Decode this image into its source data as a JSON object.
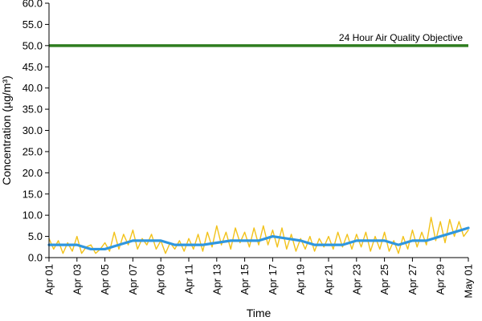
{
  "chart_data": {
    "type": "line",
    "title": "",
    "xlabel": "Time",
    "ylabel": "Concentration (µg/m³)",
    "ylim": [
      0,
      60
    ],
    "yticks": [
      "0.0",
      "5.0",
      "10.0",
      "15.0",
      "20.0",
      "25.0",
      "30.0",
      "35.0",
      "40.0",
      "45.0",
      "50.0",
      "55.0",
      "60.0"
    ],
    "xlim": [
      "2019-04-01",
      "2019-05-01"
    ],
    "xticks": [
      {
        "date": "2019-04-01",
        "label": "Apr 01"
      },
      {
        "date": "2019-04-03",
        "label": "Apr 03"
      },
      {
        "date": "2019-04-05",
        "label": "Apr 05"
      },
      {
        "date": "2019-04-07",
        "label": "Apr 07"
      },
      {
        "date": "2019-04-09",
        "label": "Apr 09"
      },
      {
        "date": "2019-04-11",
        "label": "Apr 11"
      },
      {
        "date": "2019-04-13",
        "label": "Apr 13"
      },
      {
        "date": "2019-04-15",
        "label": "Apr 15"
      },
      {
        "date": "2019-04-17",
        "label": "Apr 17"
      },
      {
        "date": "2019-04-19",
        "label": "Apr 19"
      },
      {
        "date": "2019-04-21",
        "label": "Apr 21"
      },
      {
        "date": "2019-04-23",
        "label": "Apr 23"
      },
      {
        "date": "2019-04-25",
        "label": "Apr 25"
      },
      {
        "date": "2019-04-27",
        "label": "Apr 27"
      },
      {
        "date": "2019-04-29",
        "label": "Apr 29"
      },
      {
        "date": "2019-05-01",
        "label": "May 01"
      }
    ],
    "grid": false,
    "legend": "none",
    "objective": {
      "label": "24 Hour Air Quality Objective",
      "value": 50.0,
      "color": "#2e7d1f"
    },
    "series": [
      {
        "color": "#f2c21a",
        "x": [
          "2019-04-01T00:00",
          "2019-04-01T08:00",
          "2019-04-01T16:00",
          "2019-04-02T00:00",
          "2019-04-02T08:00",
          "2019-04-02T16:00",
          "2019-04-03T00:00",
          "2019-04-03T08:00",
          "2019-04-03T16:00",
          "2019-04-04T00:00",
          "2019-04-04T08:00",
          "2019-04-04T16:00",
          "2019-04-05T00:00",
          "2019-04-05T08:00",
          "2019-04-05T16:00",
          "2019-04-06T00:00",
          "2019-04-06T08:00",
          "2019-04-06T16:00",
          "2019-04-07T00:00",
          "2019-04-07T08:00",
          "2019-04-07T16:00",
          "2019-04-08T00:00",
          "2019-04-08T08:00",
          "2019-04-08T16:00",
          "2019-04-09T00:00",
          "2019-04-09T08:00",
          "2019-04-09T16:00",
          "2019-04-10T00:00",
          "2019-04-10T08:00",
          "2019-04-10T16:00",
          "2019-04-11T00:00",
          "2019-04-11T08:00",
          "2019-04-11T16:00",
          "2019-04-12T00:00",
          "2019-04-12T08:00",
          "2019-04-12T16:00",
          "2019-04-13T00:00",
          "2019-04-13T08:00",
          "2019-04-13T16:00",
          "2019-04-14T00:00",
          "2019-04-14T08:00",
          "2019-04-14T16:00",
          "2019-04-15T00:00",
          "2019-04-15T08:00",
          "2019-04-15T16:00",
          "2019-04-16T00:00",
          "2019-04-16T08:00",
          "2019-04-16T16:00",
          "2019-04-17T00:00",
          "2019-04-17T08:00",
          "2019-04-17T16:00",
          "2019-04-18T00:00",
          "2019-04-18T08:00",
          "2019-04-18T16:00",
          "2019-04-19T00:00",
          "2019-04-19T08:00",
          "2019-04-19T16:00",
          "2019-04-20T00:00",
          "2019-04-20T08:00",
          "2019-04-20T16:00",
          "2019-04-21T00:00",
          "2019-04-21T08:00",
          "2019-04-21T16:00",
          "2019-04-22T00:00",
          "2019-04-22T08:00",
          "2019-04-22T16:00",
          "2019-04-23T00:00",
          "2019-04-23T08:00",
          "2019-04-23T16:00",
          "2019-04-24T00:00",
          "2019-04-24T08:00",
          "2019-04-24T16:00",
          "2019-04-25T00:00",
          "2019-04-25T08:00",
          "2019-04-25T16:00",
          "2019-04-26T00:00",
          "2019-04-26T08:00",
          "2019-04-26T16:00",
          "2019-04-27T00:00",
          "2019-04-27T08:00",
          "2019-04-27T16:00",
          "2019-04-28T00:00",
          "2019-04-28T08:00",
          "2019-04-28T16:00",
          "2019-04-29T00:00",
          "2019-04-29T08:00",
          "2019-04-29T16:00",
          "2019-04-30T00:00",
          "2019-04-30T08:00",
          "2019-04-30T16:00",
          "2019-05-01T00:00"
        ],
        "values": [
          4.5,
          2.0,
          4.0,
          1.0,
          3.5,
          1.5,
          5.0,
          1.0,
          2.5,
          3.0,
          1.0,
          2.0,
          3.5,
          1.5,
          6.0,
          2.0,
          5.5,
          3.0,
          6.5,
          2.0,
          4.5,
          3.0,
          5.5,
          2.0,
          4.0,
          1.0,
          3.5,
          2.0,
          4.0,
          1.5,
          4.5,
          2.0,
          5.5,
          1.5,
          6.0,
          2.5,
          7.5,
          3.0,
          6.0,
          2.0,
          7.0,
          3.5,
          6.0,
          2.5,
          7.0,
          3.0,
          7.5,
          3.0,
          6.5,
          2.5,
          7.0,
          2.0,
          5.5,
          1.5,
          4.5,
          2.0,
          5.0,
          1.5,
          4.5,
          2.5,
          5.0,
          2.0,
          6.0,
          2.5,
          5.5,
          2.0,
          5.5,
          2.5,
          6.0,
          1.5,
          5.0,
          2.0,
          6.0,
          1.5,
          4.0,
          1.0,
          5.0,
          2.0,
          6.5,
          2.5,
          6.0,
          3.0,
          9.5,
          4.0,
          8.5,
          3.5,
          9.0,
          5.0,
          8.5,
          5.0,
          6.5
        ]
      },
      {
        "color": "#2f96df",
        "x": [
          "2019-04-01",
          "2019-04-02",
          "2019-04-03",
          "2019-04-04",
          "2019-04-05",
          "2019-04-06",
          "2019-04-07",
          "2019-04-08",
          "2019-04-09",
          "2019-04-10",
          "2019-04-11",
          "2019-04-12",
          "2019-04-13",
          "2019-04-14",
          "2019-04-15",
          "2019-04-16",
          "2019-04-17",
          "2019-04-18",
          "2019-04-19",
          "2019-04-20",
          "2019-04-21",
          "2019-04-22",
          "2019-04-23",
          "2019-04-24",
          "2019-04-25",
          "2019-04-26",
          "2019-04-27",
          "2019-04-28",
          "2019-04-29",
          "2019-04-30",
          "2019-05-01"
        ],
        "values": [
          3.0,
          3.0,
          3.0,
          2.0,
          2.0,
          3.0,
          4.0,
          4.0,
          4.0,
          3.0,
          3.0,
          3.0,
          3.5,
          4.0,
          4.0,
          4.0,
          5.0,
          4.5,
          4.0,
          3.0,
          3.0,
          3.0,
          4.0,
          4.0,
          4.0,
          3.0,
          4.0,
          4.0,
          5.0,
          6.0,
          7.0
        ]
      }
    ]
  }
}
